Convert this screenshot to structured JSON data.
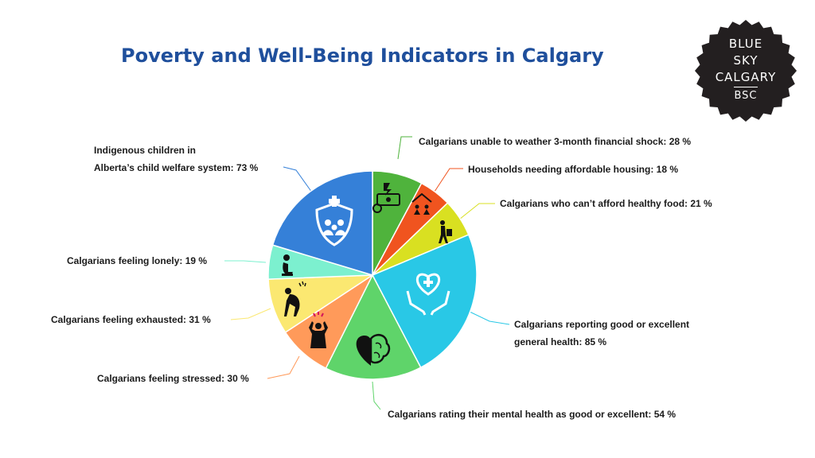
{
  "header": {
    "title": "Poverty and Well-Being Indicators in Calgary"
  },
  "logo": {
    "line1": "BLUE",
    "line2": "SKY",
    "line3": "CALGARY",
    "line4": "BSC"
  },
  "chart_data": {
    "type": "pie",
    "title": "Poverty and Well-Being Indicators in Calgary",
    "slices": [
      {
        "label": "Calgarians unable to weather 3-month financial shock: 28 %",
        "value": 28,
        "color": "#4fb33c",
        "icon": "money-stress-icon"
      },
      {
        "label": "Households needing affordable housing: 18 %",
        "value": 18,
        "color": "#f0541f",
        "icon": "family-housing-icon"
      },
      {
        "label": "Calgarians who can't afford healthy food: 21 %",
        "value": 21,
        "color": "#d9e021",
        "icon": "person-carrying-bag-icon"
      },
      {
        "label": "Calgarians reporting good or excellent general health: 85 %",
        "value": 85,
        "color": "#29c8e6",
        "icon": "hands-heart-icon"
      },
      {
        "label": "Calgarians rating their mental health as good or excellent: 54 %",
        "value": 54,
        "color": "#5fd46a",
        "icon": "heart-brain-icon"
      },
      {
        "label": "Calgarians feeling stressed: 30 %",
        "value": 30,
        "color": "#ff9a5a",
        "icon": "stressed-person-icon"
      },
      {
        "label": "Calgarians feeling exhausted: 31 %",
        "value": 31,
        "color": "#fbe871",
        "icon": "exhausted-person-icon"
      },
      {
        "label": "Calgarians feeling lonely: 19 %",
        "value": 19,
        "color": "#7cf0cf",
        "icon": "lonely-person-icon"
      },
      {
        "label": "Indigenous children in Alberta's child welfare system: 73 %",
        "value": 73,
        "color": "#3580d8",
        "icon": "shield-family-icon"
      }
    ]
  },
  "labels": {
    "shock": "Calgarians unable to weather 3-month financial shock: 28 %",
    "housing": "Households needing affordable housing: 18 %",
    "food": "Calgarians who can’t afford healthy food: 21 %",
    "health_line1": "Calgarians reporting good or excellent",
    "health_line2": "general health: 85 %",
    "mental": "Calgarians rating their mental health as good or excellent: 54 %",
    "stressed": "Calgarians feeling stressed: 30 %",
    "exhausted": "Calgarians feeling exhausted: 31 %",
    "lonely": "Calgarians feeling lonely: 19 %",
    "indigenous_line1": "Indigenous children in",
    "indigenous_line2": "Alberta’s child welfare system: 73 %"
  }
}
